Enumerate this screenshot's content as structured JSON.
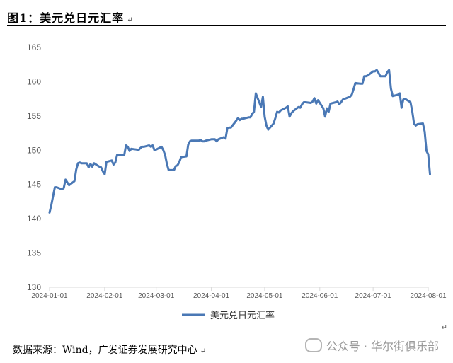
{
  "figure": {
    "title": "图1：美元兑日元汇率",
    "source": "数据来源：Wind，广发证券发展研究中心",
    "watermark": "公众号 · 华尔街俱乐部",
    "paragraph_mark": "↵"
  },
  "colors": {
    "series": "#4a78b5",
    "axis": "#d9d9d9",
    "text": "#595959"
  },
  "chart_data": {
    "type": "line",
    "title": "",
    "xlabel": "",
    "ylabel": "",
    "ylim": [
      130,
      165
    ],
    "yticks": [
      130,
      135,
      140,
      145,
      150,
      155,
      160,
      165
    ],
    "xlim": [
      "2024-01-01",
      "2024-08-01"
    ],
    "xticks": [
      "2024-01-01",
      "2024-02-01",
      "2024-03-01",
      "2024-04-01",
      "2024-05-01",
      "2024-06-01",
      "2024-07-01",
      "2024-08-01"
    ],
    "grid": false,
    "legend_position": "bottom",
    "series": [
      {
        "name": "美元兑日元汇率",
        "points": [
          [
            "2024-01-01",
            140.9
          ],
          [
            "2024-01-02",
            142.0
          ],
          [
            "2024-01-03",
            143.3
          ],
          [
            "2024-01-04",
            144.6
          ],
          [
            "2024-01-05",
            144.6
          ],
          [
            "2024-01-08",
            144.3
          ],
          [
            "2024-01-09",
            144.5
          ],
          [
            "2024-01-10",
            145.7
          ],
          [
            "2024-01-11",
            145.3
          ],
          [
            "2024-01-12",
            144.9
          ],
          [
            "2024-01-15",
            145.5
          ],
          [
            "2024-01-16",
            147.2
          ],
          [
            "2024-01-17",
            148.1
          ],
          [
            "2024-01-18",
            148.2
          ],
          [
            "2024-01-19",
            148.1
          ],
          [
            "2024-01-22",
            148.1
          ],
          [
            "2024-01-23",
            147.5
          ],
          [
            "2024-01-24",
            148.0
          ],
          [
            "2024-01-25",
            147.6
          ],
          [
            "2024-01-26",
            148.1
          ],
          [
            "2024-01-29",
            147.6
          ],
          [
            "2024-01-30",
            147.5
          ],
          [
            "2024-01-31",
            146.9
          ],
          [
            "2024-02-01",
            146.5
          ],
          [
            "2024-02-02",
            148.3
          ],
          [
            "2024-02-05",
            148.5
          ],
          [
            "2024-02-06",
            147.9
          ],
          [
            "2024-02-07",
            148.2
          ],
          [
            "2024-02-08",
            149.3
          ],
          [
            "2024-02-09",
            149.3
          ],
          [
            "2024-02-12",
            149.3
          ],
          [
            "2024-02-13",
            150.7
          ],
          [
            "2024-02-14",
            150.5
          ],
          [
            "2024-02-15",
            149.9
          ],
          [
            "2024-02-16",
            150.2
          ],
          [
            "2024-02-19",
            150.1
          ],
          [
            "2024-02-20",
            150.0
          ],
          [
            "2024-02-21",
            150.3
          ],
          [
            "2024-02-22",
            150.5
          ],
          [
            "2024-02-23",
            150.5
          ],
          [
            "2024-02-26",
            150.7
          ],
          [
            "2024-02-27",
            150.5
          ],
          [
            "2024-02-28",
            150.7
          ],
          [
            "2024-02-29",
            150.0
          ],
          [
            "2024-03-01",
            150.1
          ],
          [
            "2024-03-04",
            150.5
          ],
          [
            "2024-03-05",
            150.0
          ],
          [
            "2024-03-06",
            149.3
          ],
          [
            "2024-03-07",
            148.0
          ],
          [
            "2024-03-08",
            147.1
          ],
          [
            "2024-03-11",
            147.1
          ],
          [
            "2024-03-12",
            147.7
          ],
          [
            "2024-03-13",
            147.8
          ],
          [
            "2024-03-14",
            148.3
          ],
          [
            "2024-03-15",
            149.0
          ],
          [
            "2024-03-18",
            149.1
          ],
          [
            "2024-03-19",
            150.8
          ],
          [
            "2024-03-20",
            151.3
          ],
          [
            "2024-03-21",
            151.4
          ],
          [
            "2024-03-22",
            151.4
          ],
          [
            "2024-03-25",
            151.4
          ],
          [
            "2024-03-26",
            151.5
          ],
          [
            "2024-03-27",
            151.3
          ],
          [
            "2024-03-28",
            151.3
          ],
          [
            "2024-03-29",
            151.4
          ],
          [
            "2024-04-01",
            151.6
          ],
          [
            "2024-04-02",
            151.6
          ],
          [
            "2024-04-03",
            151.6
          ],
          [
            "2024-04-04",
            151.3
          ],
          [
            "2024-04-05",
            151.6
          ],
          [
            "2024-04-08",
            151.9
          ],
          [
            "2024-04-09",
            151.7
          ],
          [
            "2024-04-10",
            153.2
          ],
          [
            "2024-04-11",
            153.3
          ],
          [
            "2024-04-12",
            153.3
          ],
          [
            "2024-04-15",
            154.3
          ],
          [
            "2024-04-16",
            154.7
          ],
          [
            "2024-04-17",
            154.4
          ],
          [
            "2024-04-18",
            154.6
          ],
          [
            "2024-04-19",
            154.6
          ],
          [
            "2024-04-22",
            154.8
          ],
          [
            "2024-04-23",
            154.8
          ],
          [
            "2024-04-24",
            155.3
          ],
          [
            "2024-04-25",
            155.6
          ],
          [
            "2024-04-26",
            158.3
          ],
          [
            "2024-04-29",
            156.3
          ],
          [
            "2024-04-30",
            157.8
          ],
          [
            "2024-05-01",
            154.9
          ],
          [
            "2024-05-02",
            153.6
          ],
          [
            "2024-05-03",
            153.0
          ],
          [
            "2024-05-06",
            153.9
          ],
          [
            "2024-05-07",
            154.7
          ],
          [
            "2024-05-08",
            155.6
          ],
          [
            "2024-05-09",
            155.5
          ],
          [
            "2024-05-10",
            155.8
          ],
          [
            "2024-05-13",
            156.2
          ],
          [
            "2024-05-14",
            156.4
          ],
          [
            "2024-05-15",
            154.9
          ],
          [
            "2024-05-16",
            155.4
          ],
          [
            "2024-05-17",
            155.7
          ],
          [
            "2024-05-20",
            156.3
          ],
          [
            "2024-05-21",
            156.2
          ],
          [
            "2024-05-22",
            156.7
          ],
          [
            "2024-05-23",
            157.0
          ],
          [
            "2024-05-24",
            157.0
          ],
          [
            "2024-05-27",
            156.9
          ],
          [
            "2024-05-28",
            157.1
          ],
          [
            "2024-05-29",
            157.6
          ],
          [
            "2024-05-30",
            156.8
          ],
          [
            "2024-05-31",
            157.3
          ],
          [
            "2024-06-03",
            156.1
          ],
          [
            "2024-06-04",
            154.9
          ],
          [
            "2024-06-05",
            156.1
          ],
          [
            "2024-06-06",
            155.6
          ],
          [
            "2024-06-07",
            156.8
          ],
          [
            "2024-06-10",
            157.0
          ],
          [
            "2024-06-11",
            157.1
          ],
          [
            "2024-06-12",
            156.7
          ],
          [
            "2024-06-13",
            157.0
          ],
          [
            "2024-06-14",
            157.4
          ],
          [
            "2024-06-17",
            157.7
          ],
          [
            "2024-06-18",
            157.8
          ],
          [
            "2024-06-19",
            158.1
          ],
          [
            "2024-06-20",
            158.9
          ],
          [
            "2024-06-21",
            159.8
          ],
          [
            "2024-06-24",
            159.7
          ],
          [
            "2024-06-25",
            159.7
          ],
          [
            "2024-06-26",
            160.8
          ],
          [
            "2024-06-27",
            160.8
          ],
          [
            "2024-06-28",
            160.9
          ],
          [
            "2024-07-01",
            161.5
          ],
          [
            "2024-07-02",
            161.5
          ],
          [
            "2024-07-03",
            161.7
          ],
          [
            "2024-07-04",
            161.3
          ],
          [
            "2024-07-05",
            160.8
          ],
          [
            "2024-07-08",
            160.8
          ],
          [
            "2024-07-09",
            161.4
          ],
          [
            "2024-07-10",
            161.7
          ],
          [
            "2024-07-11",
            159.0
          ],
          [
            "2024-07-12",
            157.9
          ],
          [
            "2024-07-15",
            158.1
          ],
          [
            "2024-07-16",
            158.3
          ],
          [
            "2024-07-17",
            156.2
          ],
          [
            "2024-07-18",
            157.4
          ],
          [
            "2024-07-19",
            157.5
          ],
          [
            "2024-07-22",
            157.0
          ],
          [
            "2024-07-23",
            155.7
          ],
          [
            "2024-07-24",
            153.9
          ],
          [
            "2024-07-25",
            153.6
          ],
          [
            "2024-07-26",
            153.8
          ],
          [
            "2024-07-29",
            153.9
          ],
          [
            "2024-07-30",
            152.7
          ],
          [
            "2024-07-31",
            149.9
          ],
          [
            "2024-08-01",
            149.4
          ],
          [
            "2024-08-02",
            146.5
          ]
        ]
      }
    ]
  }
}
